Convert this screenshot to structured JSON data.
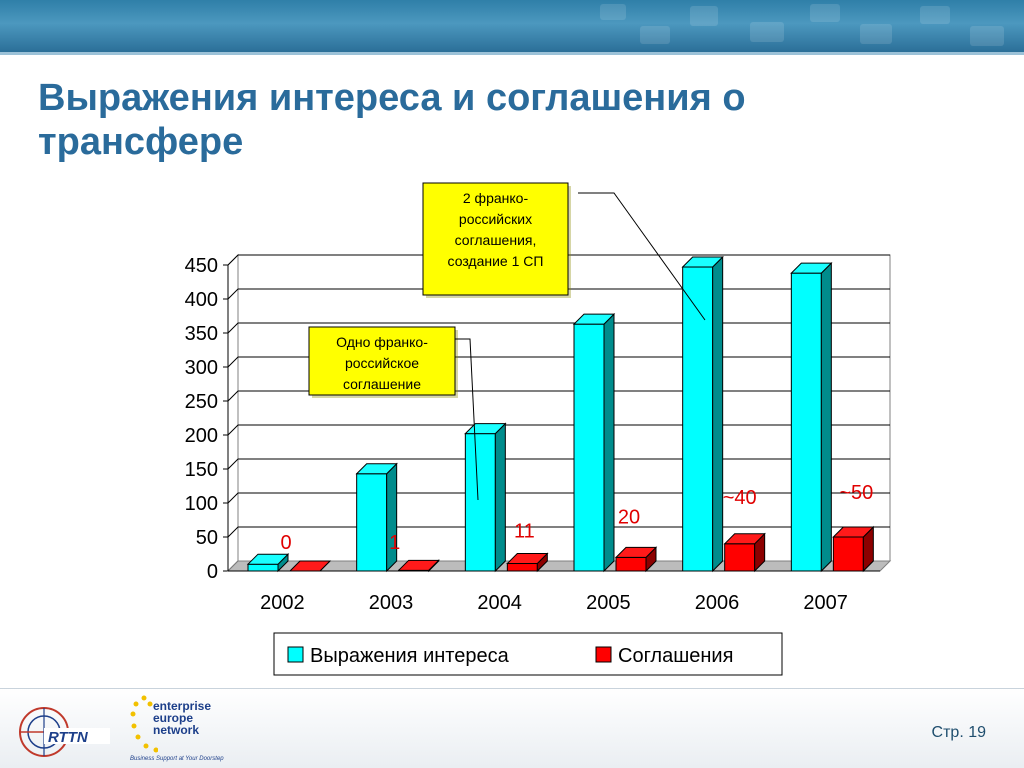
{
  "title": "Выражения интереса и соглашения о трансфере",
  "page_label": "Стр. 19",
  "colors": {
    "interest": "#00ffff",
    "agreements": "#ff0000",
    "title": "#2a6b9b",
    "callout_bg": "#ffff00",
    "label_red": "#e00000"
  },
  "logos": {
    "een_line1": "enterprise",
    "een_line2": "europe",
    "een_line3": "network",
    "een_tagline": "Business Support at Your Doorstep",
    "rttn_text": "RTTN"
  },
  "chart_data": {
    "type": "bar",
    "categories": [
      "2002",
      "2003",
      "2004",
      "2005",
      "2006",
      "2007"
    ],
    "series": [
      {
        "name": "Выражения интереса",
        "values": [
          10,
          143,
          202,
          363,
          447,
          438
        ]
      },
      {
        "name": "Соглашения",
        "values": [
          0,
          1,
          11,
          20,
          40,
          50
        ]
      }
    ],
    "y_ticks": [
      "0",
      "50",
      "100",
      "150",
      "200",
      "250",
      "300",
      "350",
      "400",
      "450"
    ],
    "ylim": [
      0,
      450
    ],
    "data_labels": [
      "0",
      "1",
      "11",
      "20",
      "~40",
      "~50"
    ],
    "legend_position": "bottom",
    "annotations": [
      {
        "text_lines": [
          "Одно франко-",
          "российское",
          "соглашение"
        ],
        "points_to": "2004"
      },
      {
        "text_lines": [
          "2 франко-",
          "российских",
          "соглашения,",
          "создание 1 СП"
        ],
        "points_to": "2006"
      }
    ]
  }
}
